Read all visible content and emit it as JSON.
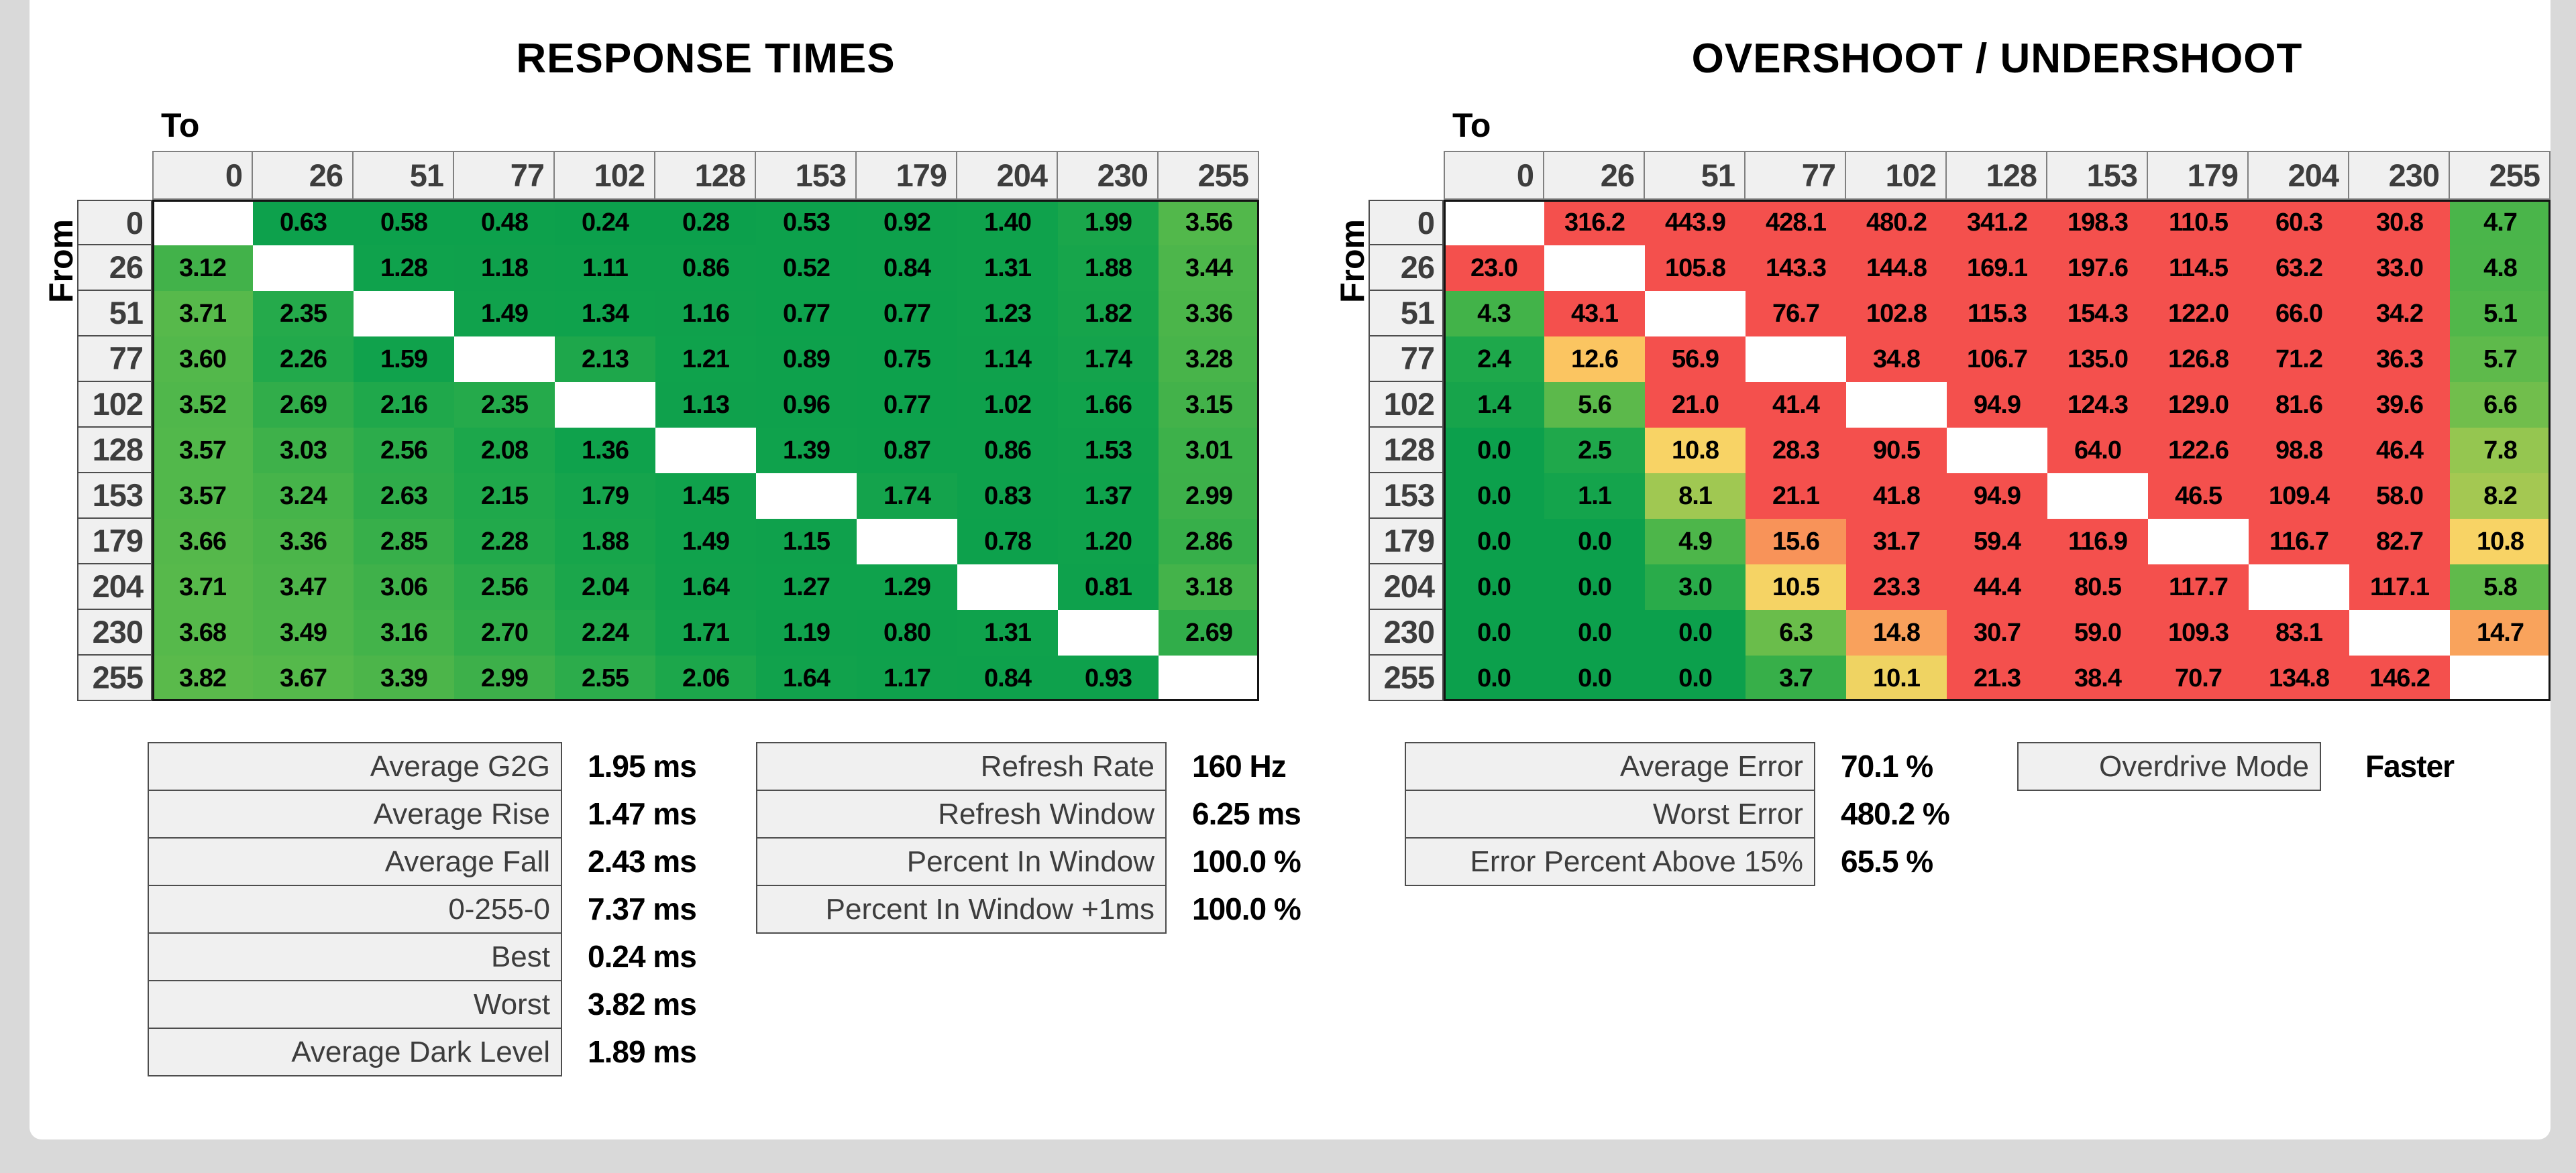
{
  "chart_data": [
    {
      "type": "heatmap",
      "title": "RESPONSE TIMES",
      "x_label": "To",
      "y_label": "From",
      "unit": "ms",
      "categories": [
        "0",
        "26",
        "51",
        "77",
        "102",
        "128",
        "153",
        "179",
        "204",
        "230",
        "255"
      ],
      "matrix": [
        [
          null,
          "0.63",
          "0.58",
          "0.48",
          "0.24",
          "0.28",
          "0.53",
          "0.92",
          "1.40",
          "1.99",
          "3.56"
        ],
        [
          "3.12",
          null,
          "1.28",
          "1.18",
          "1.11",
          "0.86",
          "0.52",
          "0.84",
          "1.31",
          "1.88",
          "3.44"
        ],
        [
          "3.71",
          "2.35",
          null,
          "1.49",
          "1.34",
          "1.16",
          "0.77",
          "0.77",
          "1.23",
          "1.82",
          "3.36"
        ],
        [
          "3.60",
          "2.26",
          "1.59",
          null,
          "2.13",
          "1.21",
          "0.89",
          "0.75",
          "1.14",
          "1.74",
          "3.28"
        ],
        [
          "3.52",
          "2.69",
          "2.16",
          "2.35",
          null,
          "1.13",
          "0.96",
          "0.77",
          "1.02",
          "1.66",
          "3.15"
        ],
        [
          "3.57",
          "3.03",
          "2.56",
          "2.08",
          "1.36",
          null,
          "1.39",
          "0.87",
          "0.86",
          "1.53",
          "3.01"
        ],
        [
          "3.57",
          "3.24",
          "2.63",
          "2.15",
          "1.79",
          "1.45",
          null,
          "1.74",
          "0.83",
          "1.37",
          "2.99"
        ],
        [
          "3.66",
          "3.36",
          "2.85",
          "2.28",
          "1.88",
          "1.49",
          "1.15",
          null,
          "0.78",
          "1.20",
          "2.86"
        ],
        [
          "3.71",
          "3.47",
          "3.06",
          "2.56",
          "2.04",
          "1.64",
          "1.27",
          "1.29",
          null,
          "0.81",
          "3.18"
        ],
        [
          "3.68",
          "3.49",
          "3.16",
          "2.70",
          "2.24",
          "1.71",
          "1.19",
          "0.80",
          "1.31",
          null,
          "2.69"
        ],
        [
          "3.82",
          "3.67",
          "3.39",
          "2.99",
          "2.55",
          "2.06",
          "1.64",
          "1.17",
          "0.84",
          "0.93",
          null
        ]
      ]
    },
    {
      "type": "heatmap",
      "title": "OVERSHOOT / UNDERSHOOT",
      "x_label": "To",
      "y_label": "From",
      "unit": "%",
      "categories": [
        "0",
        "26",
        "51",
        "77",
        "102",
        "128",
        "153",
        "179",
        "204",
        "230",
        "255"
      ],
      "matrix": [
        [
          null,
          "316.2",
          "443.9",
          "428.1",
          "480.2",
          "341.2",
          "198.3",
          "110.5",
          "60.3",
          "30.8",
          "4.7"
        ],
        [
          "23.0",
          null,
          "105.8",
          "143.3",
          "144.8",
          "169.1",
          "197.6",
          "114.5",
          "63.2",
          "33.0",
          "4.8"
        ],
        [
          "4.3",
          "43.1",
          null,
          "76.7",
          "102.8",
          "115.3",
          "154.3",
          "122.0",
          "66.0",
          "34.2",
          "5.1"
        ],
        [
          "2.4",
          "12.6",
          "56.9",
          null,
          "34.8",
          "106.7",
          "135.0",
          "126.8",
          "71.2",
          "36.3",
          "5.7"
        ],
        [
          "1.4",
          "5.6",
          "21.0",
          "41.4",
          null,
          "94.9",
          "124.3",
          "129.0",
          "81.6",
          "39.6",
          "6.6"
        ],
        [
          "0.0",
          "2.5",
          "10.8",
          "28.3",
          "90.5",
          null,
          "64.0",
          "122.6",
          "98.8",
          "46.4",
          "7.8"
        ],
        [
          "0.0",
          "1.1",
          "8.1",
          "21.1",
          "41.8",
          "94.9",
          null,
          "46.5",
          "109.4",
          "58.0",
          "8.2"
        ],
        [
          "0.0",
          "0.0",
          "4.9",
          "15.6",
          "31.7",
          "59.4",
          "116.9",
          null,
          "116.7",
          "82.7",
          "10.8"
        ],
        [
          "0.0",
          "0.0",
          "3.0",
          "10.5",
          "23.3",
          "44.4",
          "80.5",
          "117.7",
          null,
          "117.1",
          "5.8"
        ],
        [
          "0.0",
          "0.0",
          "0.0",
          "6.3",
          "14.8",
          "30.7",
          "59.0",
          "109.3",
          "83.1",
          null,
          "14.7"
        ],
        [
          "0.0",
          "0.0",
          "0.0",
          "3.7",
          "10.1",
          "21.3",
          "38.4",
          "70.7",
          "134.8",
          "146.2",
          null
        ]
      ]
    }
  ],
  "summaries": {
    "response": {
      "rows": [
        {
          "label": "Average G2G",
          "value": "1.95 ms"
        },
        {
          "label": "Average Rise",
          "value": "1.47 ms"
        },
        {
          "label": "Average Fall",
          "value": "2.43 ms"
        },
        {
          "label": "0-255-0",
          "value": "7.37 ms"
        },
        {
          "label": "Best",
          "value": "0.24 ms"
        },
        {
          "label": "Worst",
          "value": "3.82 ms"
        },
        {
          "label": "Average Dark Level",
          "value": "1.89 ms"
        }
      ]
    },
    "refresh": {
      "rows": [
        {
          "label": "Refresh Rate",
          "value": "160 Hz"
        },
        {
          "label": "Refresh Window",
          "value": "6.25 ms"
        },
        {
          "label": "Percent In Window",
          "value": "100.0 %"
        },
        {
          "label": "Percent In Window +1ms",
          "value": "100.0 %"
        }
      ]
    },
    "error": {
      "rows": [
        {
          "label": "Average Error",
          "value": "70.1 %"
        },
        {
          "label": "Worst Error",
          "value": "480.2 %"
        },
        {
          "label": "Error Percent Above 15%",
          "value": "65.5 %"
        }
      ]
    }
  },
  "overdrive": {
    "label": "Overdrive Mode",
    "value": "Faster"
  },
  "colors": {
    "page_bg": "#d9d9d9",
    "panel_bg": "#ffffff",
    "header_bg": "#f0f0f0",
    "header_border": "#808080",
    "header_text": "#3d3d3d",
    "summary_border": "#4d4d4d",
    "matrix_frame": "#141414",
    "cell_text": "#000000",
    "diagonal_bg": "#ffffff",
    "response_scale": [
      [
        0,
        "#0ba04c"
      ],
      [
        1.6,
        "#10a24c"
      ],
      [
        2.0,
        "#1aa64b"
      ],
      [
        2.4,
        "#26aa4b"
      ],
      [
        2.8,
        "#35ae4a"
      ],
      [
        3.2,
        "#45b34a"
      ],
      [
        3.6,
        "#53b84b"
      ],
      [
        4.0,
        "#60bb4b"
      ]
    ],
    "overshoot_scale": [
      [
        0,
        "#0ca04c"
      ],
      [
        2.5,
        "#1fa84b"
      ],
      [
        4,
        "#3db149"
      ],
      [
        5,
        "#4fb64a"
      ],
      [
        6,
        "#64bb4b"
      ],
      [
        7,
        "#79c04c"
      ],
      [
        8,
        "#9cc751"
      ],
      [
        9,
        "#c4ce58"
      ],
      [
        10,
        "#eed362"
      ],
      [
        11,
        "#fbd366"
      ],
      [
        13,
        "#fbc260"
      ],
      [
        15,
        "#f99d5b"
      ],
      [
        17,
        "#f77d54"
      ],
      [
        19,
        "#f55d4f"
      ],
      [
        20,
        "#f4504d"
      ]
    ]
  }
}
